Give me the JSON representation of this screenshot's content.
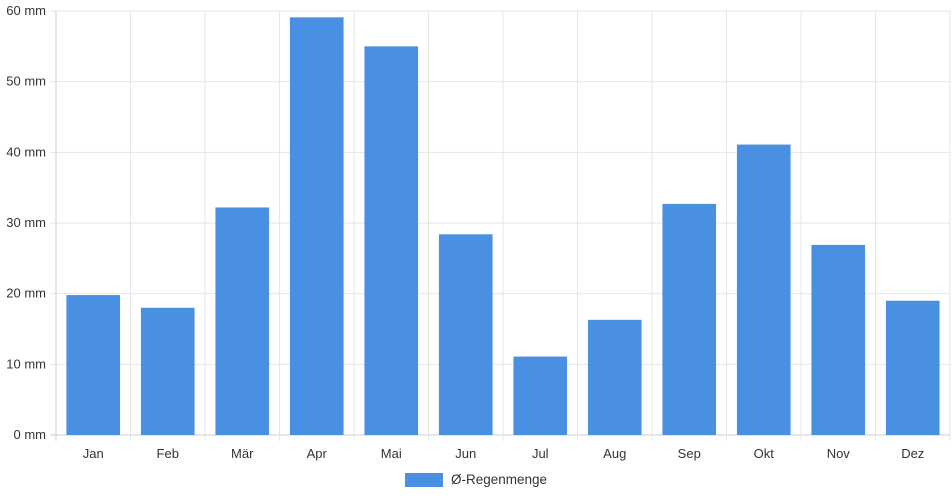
{
  "chart_data": {
    "type": "bar",
    "categories": [
      "Jan",
      "Feb",
      "Mär",
      "Apr",
      "Mai",
      "Jun",
      "Jul",
      "Aug",
      "Sep",
      "Okt",
      "Nov",
      "Dez"
    ],
    "series": [
      {
        "name": "Ø-Regenmenge",
        "values": [
          19.8,
          18.0,
          32.2,
          59.1,
          55.0,
          28.4,
          11.1,
          16.3,
          32.7,
          41.1,
          26.9,
          19.0
        ]
      }
    ],
    "y_ticks": [
      "0 mm",
      "10 mm",
      "20 mm",
      "30 mm",
      "40 mm",
      "50 mm",
      "60 mm"
    ],
    "ylim": [
      0,
      60
    ],
    "unit": "mm",
    "grid": true,
    "legend_position": "bottom",
    "colors": {
      "bar": "#4a90e2",
      "grid": "#e6e6e6",
      "axis": "#cccccc"
    }
  }
}
